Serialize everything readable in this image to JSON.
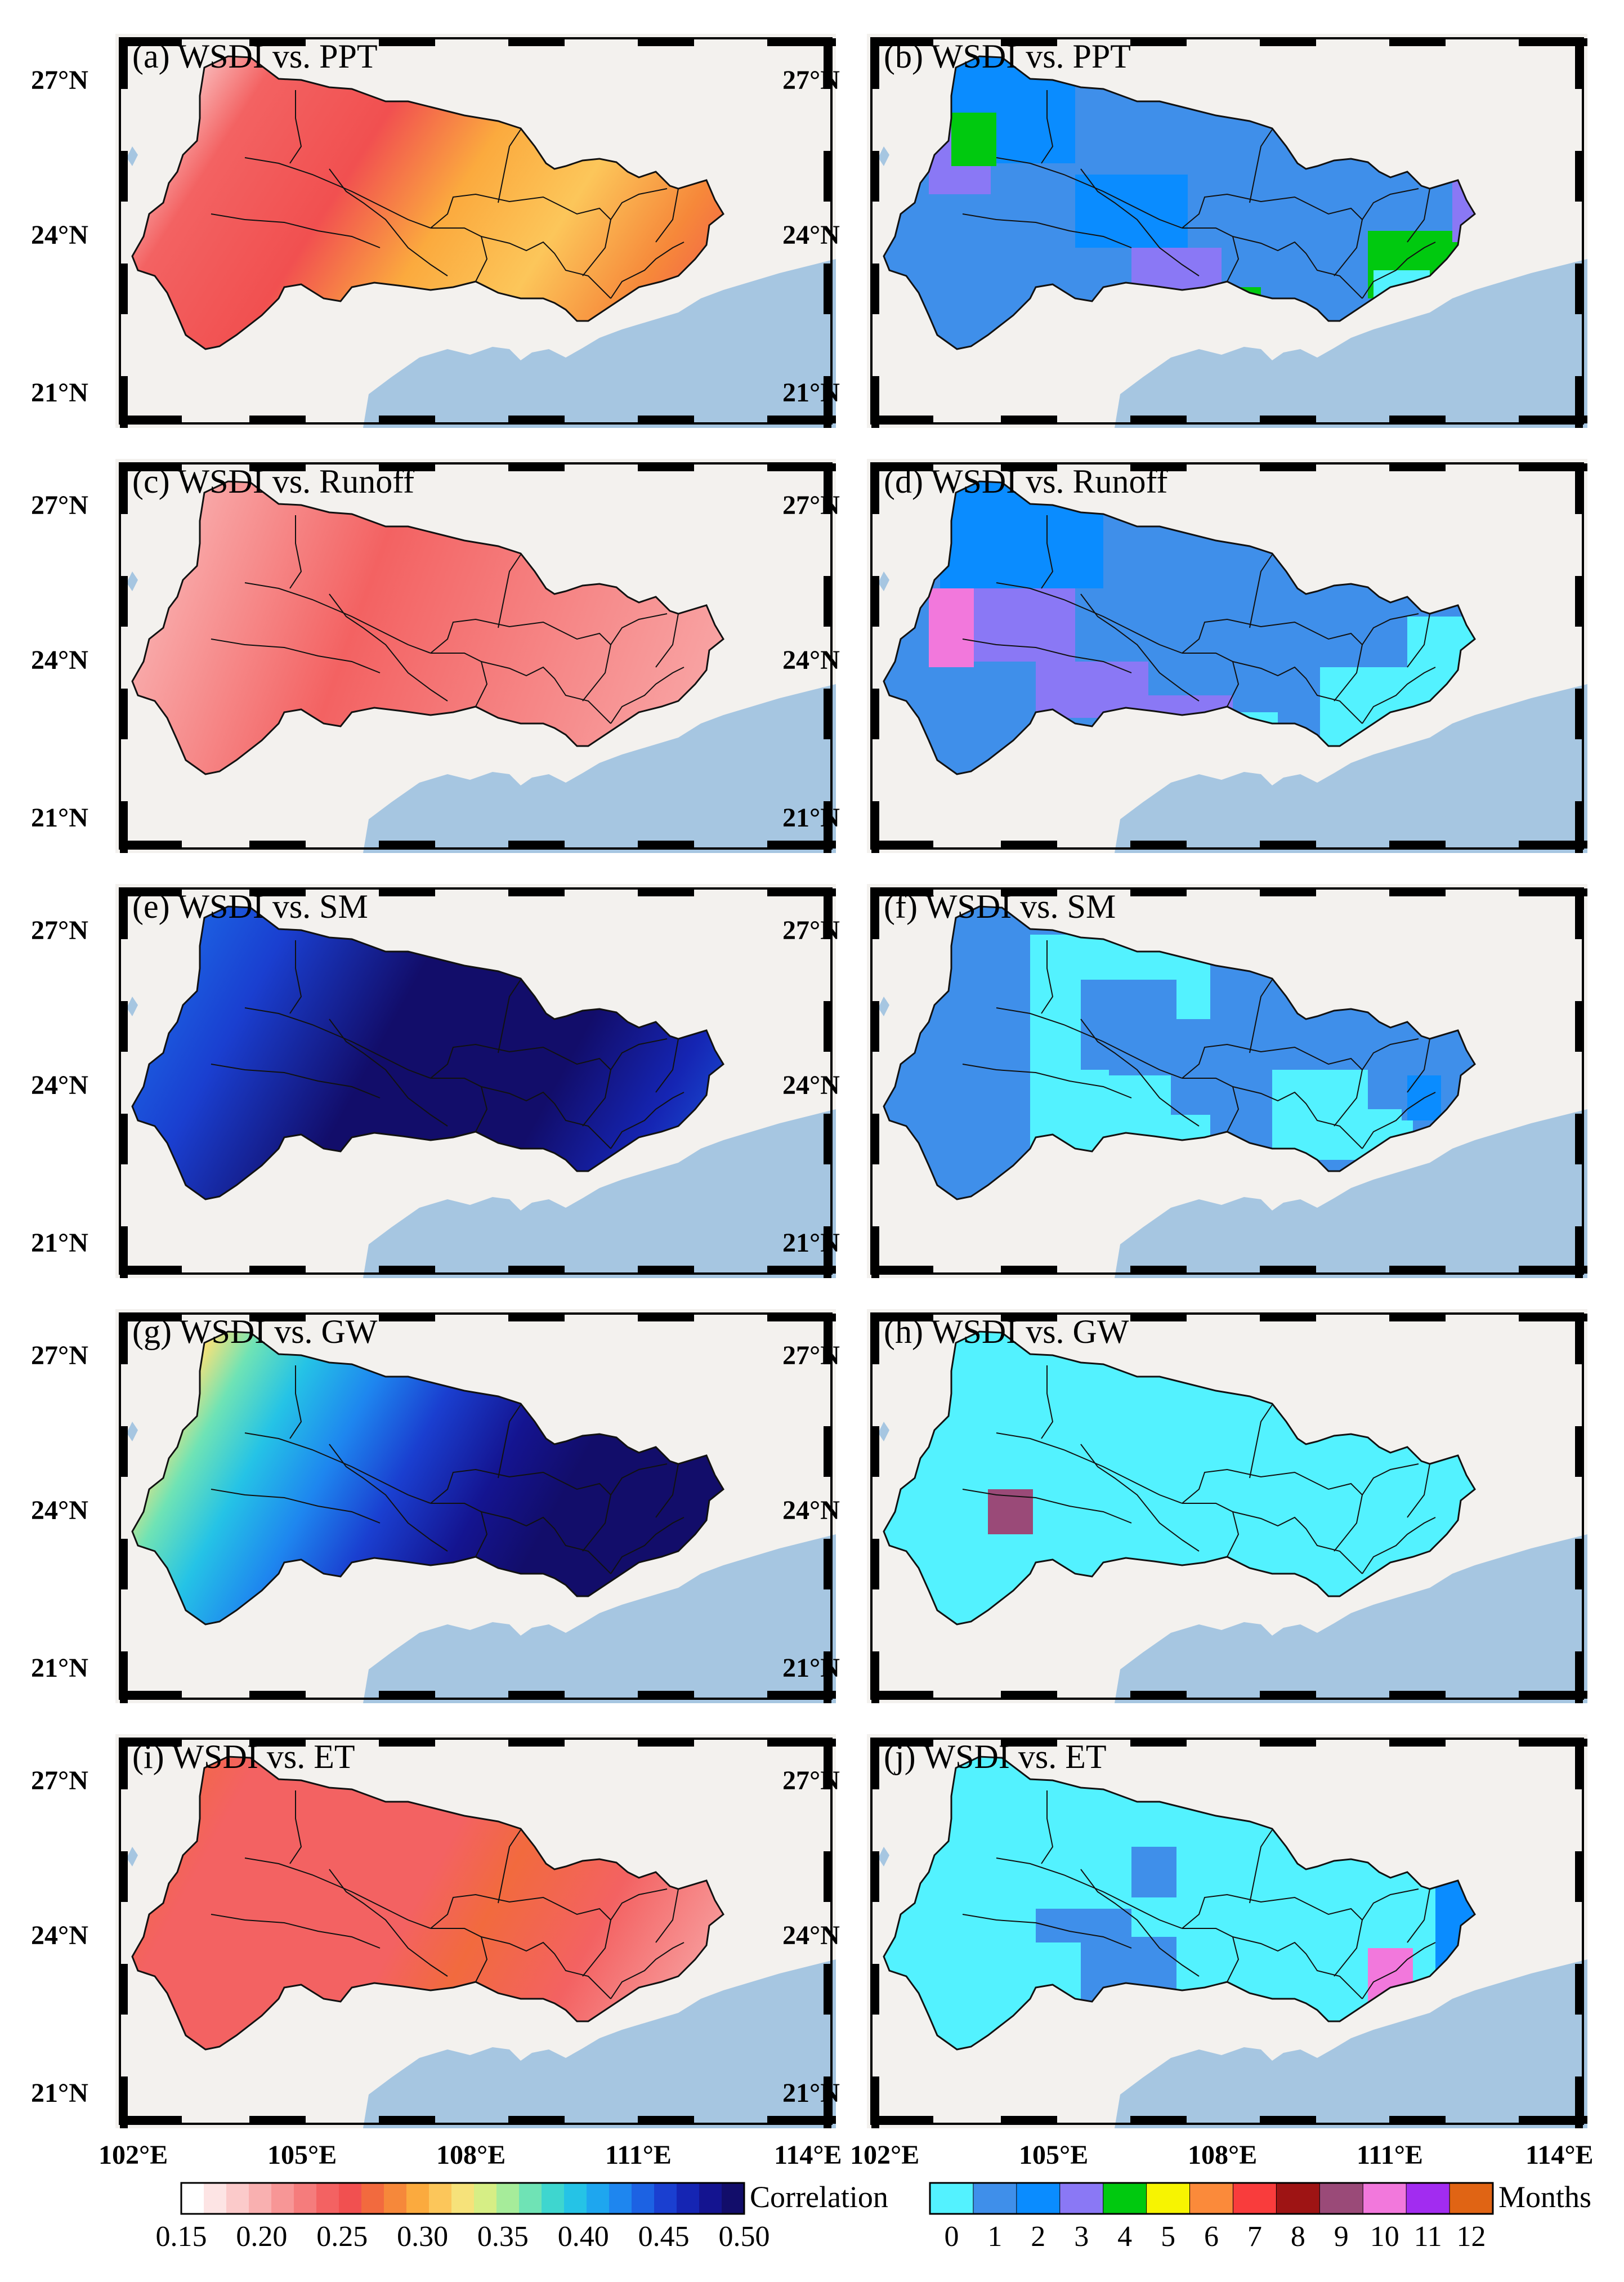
{
  "lat_labels": [
    "27°N",
    "24°N",
    "21°N"
  ],
  "lon_labels": [
    "102°E",
    "105°E",
    "108°E",
    "111°E",
    "114°E"
  ],
  "panels": [
    {
      "id": "a",
      "title": "(a) WSDI vs. PPT",
      "kind": "correlation",
      "palette": "corr-red"
    },
    {
      "id": "b",
      "title": "(b) WSDI vs. PPT",
      "kind": "lag",
      "palette": "lag-ppt"
    },
    {
      "id": "c",
      "title": "(c) WSDI vs. Runoff",
      "kind": "correlation",
      "palette": "corr-pink"
    },
    {
      "id": "d",
      "title": "(d) WSDI vs. Runoff",
      "kind": "lag",
      "palette": "lag-runoff"
    },
    {
      "id": "e",
      "title": "(e) WSDI vs. SM",
      "kind": "correlation",
      "palette": "corr-blue"
    },
    {
      "id": "f",
      "title": "(f) WSDI vs. SM",
      "kind": "lag",
      "palette": "lag-sm"
    },
    {
      "id": "g",
      "title": "(g) WSDI vs. GW",
      "kind": "correlation",
      "palette": "corr-rainbow"
    },
    {
      "id": "h",
      "title": "(h) WSDI vs. GW",
      "kind": "lag",
      "palette": "lag-gw"
    },
    {
      "id": "i",
      "title": "(i) WSDI vs. ET",
      "kind": "correlation",
      "palette": "corr-red2"
    },
    {
      "id": "j",
      "title": "(j) WSDI vs. ET",
      "kind": "lag",
      "palette": "lag-et"
    }
  ],
  "correlation_colorbar": {
    "title": "Correlation",
    "ticks": [
      "0.15",
      "0.20",
      "0.25",
      "0.30",
      "0.35",
      "0.40",
      "0.45",
      "0.50"
    ],
    "min": 0.15,
    "max": 0.5,
    "colors": [
      "#ffffff",
      "#fde4e4",
      "#fbcaca",
      "#f9b0b0",
      "#f79696",
      "#f57c7c",
      "#f36262",
      "#f15050",
      "#f26a3e",
      "#f6883a",
      "#fbaa3e",
      "#fcc65a",
      "#f6e27a",
      "#d6ee85",
      "#a6ec9a",
      "#6fe3b5",
      "#3ed6cf",
      "#25c3e6",
      "#1ea6ef",
      "#1e86ef",
      "#1c62e3",
      "#1a3fd0",
      "#1525b3",
      "#141490",
      "#120d6a"
    ]
  },
  "lag_colorbar": {
    "title": "Months",
    "ticks": [
      "0",
      "1",
      "2",
      "3",
      "4",
      "5",
      "6",
      "7",
      "8",
      "9",
      "10",
      "11",
      "12"
    ],
    "colors": [
      "#53f2ff",
      "#3f8fea",
      "#0a8cff",
      "#8a78f5",
      "#00c90f",
      "#f7f401",
      "#fb8a3a",
      "#f93c3c",
      "#9e1414",
      "#9a4a78",
      "#f278dc",
      "#a22cf0",
      "#e06414"
    ]
  },
  "colors": {
    "land_bg": "#f3f1ee",
    "sea": "#a6c6e1",
    "frame": "#000000"
  }
}
